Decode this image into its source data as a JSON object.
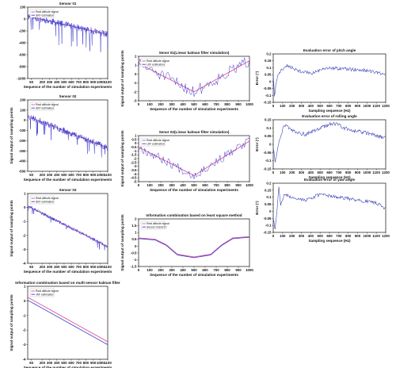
{
  "colors": {
    "estimate": "#3a3ad0",
    "real": "#e0559a",
    "error": "#3e47b8",
    "axis": "#111111"
  },
  "chart_data": [
    {
      "id": "p1",
      "type": "line",
      "title": "Sensor 01",
      "xlabel": "Sequence of the number of simulation experiments",
      "ylabel": "",
      "xlim": [
        0,
        1100
      ],
      "ylim": [
        -1000,
        200
      ],
      "xticks": [
        50,
        200,
        300,
        400,
        500,
        600,
        700,
        800,
        900,
        1000,
        1100
      ],
      "yticks": [
        -1000,
        -800,
        -600,
        -400,
        -200,
        0,
        200
      ],
      "legend": [
        "Real altitude signal",
        "SKF estimation"
      ],
      "series": [
        {
          "name": "Real altitude signal",
          "kind": "real",
          "x": [
            0,
            1100
          ],
          "y": [
            50,
            -260
          ]
        },
        {
          "name": "SKF estimation",
          "kind": "noisy",
          "x": [
            0,
            1100
          ],
          "y": [
            50,
            -260
          ],
          "noise": 55,
          "spike": 380,
          "seed": 11,
          "n": 260
        }
      ]
    },
    {
      "id": "p2",
      "type": "line",
      "title": "Sensor 02",
      "xlabel": "Sequence of the number of simulation experiments",
      "ylabel": "Signal output of sampling points",
      "xlim": [
        0,
        1100
      ],
      "ylim": [
        -500,
        200
      ],
      "xticks": [
        50,
        200,
        300,
        400,
        500,
        600,
        700,
        800,
        900,
        1000,
        1100
      ],
      "yticks": [
        -500,
        -400,
        -300,
        -200,
        -100,
        0,
        100,
        200
      ],
      "legend": [
        "Real altitude signal",
        "SKF estimation"
      ],
      "series": [
        {
          "name": "Real altitude signal",
          "kind": "real",
          "x": [
            0,
            1100
          ],
          "y": [
            40,
            -270
          ]
        },
        {
          "name": "SKF estimation",
          "kind": "noisy",
          "x": [
            0,
            1100
          ],
          "y": [
            40,
            -270
          ],
          "noise": 30,
          "spike": 140,
          "seed": 23,
          "n": 260
        }
      ]
    },
    {
      "id": "p3",
      "type": "line",
      "title": "Sensor 03",
      "xlabel": "Sequence of the number of simulation experiments",
      "ylabel": "Signal output of sampling points",
      "xlim": [
        0,
        1100
      ],
      "ylim": [
        -4,
        1
      ],
      "xticks": [
        50,
        200,
        300,
        400,
        500,
        600,
        700,
        800,
        900,
        1000,
        1100
      ],
      "yticks": [
        -4,
        -3,
        -2,
        -1,
        0,
        1
      ],
      "legend": [
        "Real altitude signal",
        "SKF estimation"
      ],
      "series": [
        {
          "name": "Real altitude signal",
          "kind": "real",
          "x": [
            0,
            1100
          ],
          "y": [
            0.1,
            -2.8
          ]
        },
        {
          "name": "SKF estimation",
          "kind": "noisy",
          "x": [
            0,
            1100
          ],
          "y": [
            0.1,
            -2.8
          ],
          "noise": 0.12,
          "spike": 0.5,
          "seed": 37,
          "n": 260
        }
      ]
    },
    {
      "id": "p4",
      "type": "line",
      "title": "Information combination based on multi-sensor kalman filter",
      "xlabel": "Sequence of the number of simulation experiments",
      "ylabel": "Signal output of sampling points",
      "xlim": [
        0,
        1100
      ],
      "ylim": [
        -4,
        1
      ],
      "xticks": [
        50,
        200,
        300,
        400,
        500,
        600,
        700,
        800,
        900,
        1000,
        1100
      ],
      "yticks": [
        -4,
        -3,
        -2,
        -1,
        0,
        1
      ],
      "legend": [
        "Real altitude signal",
        "JKF estimation"
      ],
      "series": [
        {
          "name": "Real altitude signal",
          "kind": "real",
          "x": [
            0,
            1100
          ],
          "y": [
            0.25,
            -2.8
          ]
        },
        {
          "name": "JKF estimation",
          "kind": "smooth",
          "x": [
            0,
            1100
          ],
          "y": [
            0.05,
            -3.0
          ]
        }
      ]
    },
    {
      "id": "p5",
      "type": "line",
      "title": "Senor 01(Linear kalman filter simulation)",
      "xlabel": "Sequence of the number of simulation experiments",
      "ylabel": "Signal output of sampling points",
      "xlim": [
        0,
        1000
      ],
      "ylim": [
        -3,
        2
      ],
      "xticks": [
        0,
        100,
        200,
        300,
        400,
        500,
        600,
        700,
        800,
        900,
        1000
      ],
      "yticks": [
        -3,
        -2,
        -1,
        0,
        1,
        2
      ],
      "legend": [
        "Real altitude signal",
        "LKF estimation"
      ],
      "series": [
        {
          "name": "Real altitude signal",
          "kind": "real",
          "x": [
            0,
            500,
            1000
          ],
          "y": [
            1.2,
            -2.0,
            1.5
          ]
        },
        {
          "name": "LKF estimation",
          "kind": "noisy",
          "x": [
            0,
            500,
            1000
          ],
          "y": [
            1.2,
            -2.0,
            1.5
          ],
          "noise": 0.7,
          "spike": 0,
          "seed": 51,
          "n": 90
        }
      ]
    },
    {
      "id": "p6",
      "type": "line",
      "title": "Senor 02(Linear kalman filter simulation)",
      "xlabel": "Sequence of the number of simulation experiments",
      "ylabel": "Signal output of sampling points",
      "xlim": [
        0,
        1000
      ],
      "ylim": [
        -5,
        1
      ],
      "xticks": [
        0,
        100,
        200,
        300,
        400,
        500,
        600,
        700,
        800,
        900,
        1000
      ],
      "yticks": [
        -5,
        -4.5,
        -4,
        -3.5,
        -3,
        -2.5,
        -2,
        -1.5,
        -1,
        -0.5,
        0,
        0.5,
        1
      ],
      "legend": [
        "Real altitude signal",
        "LKF estimation"
      ],
      "series": [
        {
          "name": "Real altitude signal",
          "kind": "real",
          "x": [
            0,
            500,
            1000
          ],
          "y": [
            -0.5,
            -4.2,
            0.3
          ]
        },
        {
          "name": "LKF estimation",
          "kind": "noisy",
          "x": [
            0,
            500,
            1000
          ],
          "y": [
            -0.5,
            -4.2,
            0.3
          ],
          "noise": 0.6,
          "spike": 0,
          "seed": 67,
          "n": 90
        }
      ]
    },
    {
      "id": "p7",
      "type": "line",
      "title": "Information combination based on least square method",
      "xlabel": "Sequence of the number of simulation experiments",
      "ylabel": "Signal output of sampling points",
      "xlim": [
        0,
        1000
      ],
      "ylim": [
        -1.5,
        2
      ],
      "xticks": [
        0,
        100,
        200,
        300,
        400,
        500,
        600,
        700,
        800,
        900,
        1000
      ],
      "yticks": [
        -1.5,
        -1,
        -0.5,
        0,
        0.5,
        1,
        1.5,
        2
      ],
      "legend": [
        "Real altitude signal",
        "Sensor 01&02 IC"
      ],
      "series": [
        {
          "name": "Real altitude signal",
          "kind": "real",
          "x": [
            0,
            150,
            250,
            350,
            500,
            650,
            750,
            850,
            1000
          ],
          "y": [
            0.6,
            0.5,
            0.1,
            -0.6,
            -0.8,
            -0.6,
            0.1,
            0.6,
            0.7
          ]
        },
        {
          "name": "Sensor 01&02 IC",
          "kind": "smooth",
          "x": [
            0,
            150,
            250,
            350,
            500,
            650,
            750,
            850,
            1000
          ],
          "y": [
            0.55,
            0.45,
            0.05,
            -0.65,
            -0.85,
            -0.65,
            0.05,
            0.55,
            0.65
          ]
        }
      ]
    },
    {
      "id": "p8",
      "type": "line",
      "title": "Evaluation error of pitch angle",
      "xlabel": "Sampling sequence (Hz)",
      "ylabel": "Error (°)",
      "xlim": [
        0,
        1200
      ],
      "ylim": [
        -0.15,
        0.2
      ],
      "xticks": [
        0,
        100,
        200,
        300,
        400,
        500,
        600,
        700,
        800,
        900,
        1000,
        1100,
        1200
      ],
      "yticks": [
        -0.15,
        -0.1,
        -0.05,
        0,
        0.05,
        0.1,
        0.15,
        0.2
      ],
      "series": [
        {
          "name": "",
          "kind": "error",
          "x": [
            0,
            15,
            30,
            60,
            100,
            150,
            250,
            400,
            600,
            800,
            1000,
            1200
          ],
          "y": [
            0.05,
            -0.12,
            0.0,
            0.06,
            0.09,
            0.12,
            0.08,
            0.06,
            0.1,
            0.09,
            0.08,
            0.05
          ],
          "noise": 0.012,
          "seed": 81,
          "n": 180
        }
      ]
    },
    {
      "id": "p9",
      "type": "line",
      "title": "Evaluation error of rolling angle",
      "xlabel": "Sampling sequence (Hz)",
      "ylabel": "Error (°)",
      "xlim": [
        0,
        1200
      ],
      "ylim": [
        -0.15,
        0.15
      ],
      "xticks": [
        0,
        100,
        200,
        300,
        400,
        500,
        600,
        700,
        800,
        900,
        1000,
        1100,
        1200
      ],
      "yticks": [
        -0.15,
        -0.1,
        -0.05,
        0,
        0.05,
        0.1,
        0.15
      ],
      "series": [
        {
          "name": "",
          "kind": "error",
          "x": [
            0,
            20,
            40,
            80,
            120,
            200,
            350,
            500,
            650,
            800,
            1000,
            1200
          ],
          "y": [
            -0.02,
            -0.1,
            -0.05,
            0.05,
            0.12,
            0.08,
            0.06,
            0.1,
            0.13,
            0.09,
            0.07,
            0.04
          ],
          "noise": 0.012,
          "seed": 93,
          "n": 180
        }
      ]
    },
    {
      "id": "p10",
      "type": "line",
      "title": "Evaluation error of yaw angle",
      "xlabel": "Sampling sequence (Hz)",
      "ylabel": "Error (°)",
      "xlim": [
        0,
        1200
      ],
      "ylim": [
        -0.15,
        0.2
      ],
      "xticks": [
        0,
        100,
        200,
        300,
        400,
        500,
        600,
        700,
        800,
        900,
        1000,
        1100,
        1200
      ],
      "yticks": [
        -0.15,
        -0.1,
        -0.05,
        0,
        0.05,
        0.1,
        0.15,
        0.2
      ],
      "series": [
        {
          "name": "",
          "kind": "error",
          "x": [
            0,
            20,
            40,
            60,
            80,
            120,
            200,
            350,
            500,
            700,
            900,
            1100,
            1200
          ],
          "y": [
            -0.05,
            -0.13,
            0.0,
            0.17,
            0.05,
            0.12,
            0.1,
            0.08,
            0.12,
            0.1,
            0.08,
            0.06,
            0.02
          ],
          "noise": 0.012,
          "seed": 107,
          "n": 180
        }
      ]
    }
  ]
}
